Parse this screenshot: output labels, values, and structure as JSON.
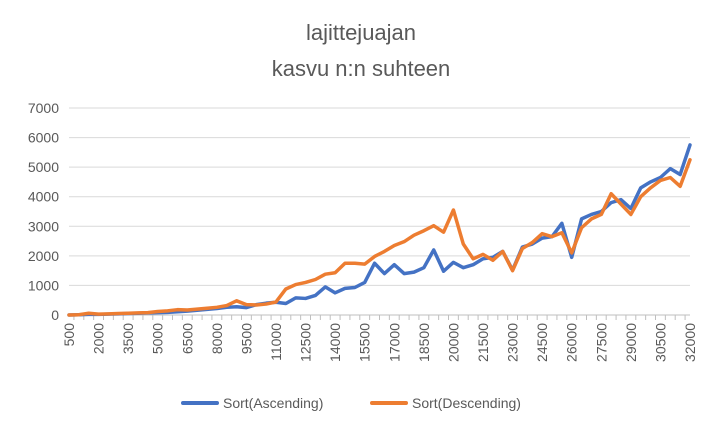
{
  "chart_data": {
    "type": "line",
    "title_lines": [
      "lajittejuajan",
      "kasvu n:n suhteen"
    ],
    "xlabel": "",
    "ylabel": "",
    "ylim": [
      0,
      7000
    ],
    "yticks": [
      0,
      1000,
      2000,
      3000,
      4000,
      5000,
      6000,
      7000
    ],
    "x_step": 500,
    "x": [
      500,
      1000,
      1500,
      2000,
      2500,
      3000,
      3500,
      4000,
      4500,
      5000,
      5500,
      6000,
      6500,
      7000,
      7500,
      8000,
      8500,
      9000,
      9500,
      10000,
      10500,
      11000,
      11500,
      12000,
      12500,
      13000,
      13500,
      14000,
      14500,
      15000,
      15500,
      16000,
      16500,
      17000,
      17500,
      18000,
      18500,
      19000,
      19500,
      20000,
      20500,
      21000,
      21500,
      22000,
      22500,
      23000,
      23500,
      24000,
      24500,
      25000,
      25500,
      26000,
      26500,
      27000,
      27500,
      28000,
      28500,
      29000,
      29500,
      30000,
      30500,
      31000,
      31500,
      32000
    ],
    "xtick_labels": [
      "500",
      "2000",
      "3500",
      "5000",
      "6500",
      "8000",
      "9500",
      "11000",
      "12500",
      "14000",
      "15500",
      "17000",
      "18500",
      "20000",
      "21500",
      "23000",
      "24500",
      "26000",
      "27500",
      "29000",
      "30500",
      "32000"
    ],
    "grid": "horizontal",
    "legend_position": "bottom",
    "series": [
      {
        "name": "Sort(Ascending)",
        "color": "#4472C4",
        "values": [
          0,
          10,
          20,
          20,
          30,
          40,
          50,
          60,
          70,
          80,
          90,
          110,
          130,
          160,
          190,
          220,
          260,
          280,
          250,
          350,
          400,
          430,
          390,
          580,
          560,
          660,
          950,
          750,
          900,
          930,
          1100,
          1750,
          1400,
          1700,
          1400,
          1450,
          1600,
          2200,
          1480,
          1780,
          1600,
          1700,
          1900,
          1950,
          2150,
          1520,
          2300,
          2400,
          2600,
          2650,
          3100,
          1950,
          3250,
          3400,
          3500,
          3800,
          3900,
          3600,
          4300,
          4500,
          4650,
          4950,
          4750,
          5750
        ]
      },
      {
        "name": "Sort(Descending)",
        "color": "#ED7D31",
        "values": [
          0,
          10,
          60,
          30,
          40,
          50,
          60,
          70,
          80,
          120,
          140,
          180,
          170,
          200,
          230,
          260,
          320,
          480,
          350,
          340,
          370,
          440,
          880,
          1030,
          1100,
          1200,
          1380,
          1430,
          1750,
          1750,
          1720,
          1980,
          2150,
          2350,
          2480,
          2700,
          2850,
          3020,
          2800,
          3550,
          2400,
          1900,
          2050,
          1850,
          2150,
          1500,
          2250,
          2450,
          2750,
          2650,
          2780,
          2100,
          2950,
          3250,
          3400,
          4100,
          3750,
          3400,
          4000,
          4300,
          4550,
          4650,
          4350,
          5250
        ]
      }
    ]
  }
}
